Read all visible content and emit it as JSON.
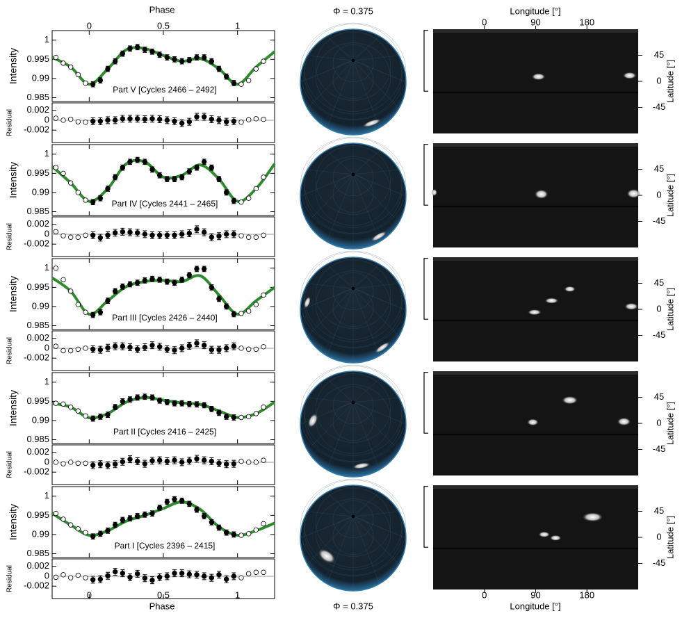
{
  "chart_data": {
    "type": "spot-model",
    "phase_label_top": "Phase",
    "phase_label_bottom": "Phase",
    "globe_title_top": "Φ = 0.375",
    "globe_title_bottom": "Φ = 0.375",
    "lon_label_top": "Longitude [°]",
    "lon_label_bottom": "Longitude [°]",
    "lat_label": "Latitude [°]",
    "intensity_label": "Intensity",
    "residual_label": "Residual",
    "xlim": [
      -0.25,
      1.25
    ],
    "xticks": [
      0,
      0.5,
      1
    ],
    "ylim": [
      0.984,
      1.0025
    ],
    "yticks": [
      0.985,
      0.99,
      0.995,
      1
    ],
    "resid_ylim": [
      -0.0045,
      0.0035
    ],
    "resid_yticks": [
      -0.002,
      0,
      0.002
    ],
    "lonlim": [
      -90,
      270
    ],
    "lonticks": [
      0,
      90,
      180
    ],
    "latlim": [
      -90,
      90
    ],
    "latticks": [
      -45,
      0,
      45
    ],
    "model_color": "#2e8b2e",
    "point_color": "#000000",
    "x": [
      -0.225,
      -0.175,
      -0.125,
      -0.075,
      -0.025,
      0.025,
      0.075,
      0.125,
      0.175,
      0.225,
      0.275,
      0.325,
      0.375,
      0.425,
      0.475,
      0.525,
      0.575,
      0.625,
      0.675,
      0.725,
      0.775,
      0.825,
      0.875,
      0.925,
      0.975,
      1.025,
      1.075,
      1.125,
      1.175
    ],
    "model_x": [
      -0.25,
      -0.125,
      0,
      0.125,
      0.25,
      0.375,
      0.5,
      0.625,
      0.75,
      0.875,
      1,
      1.125,
      1.25
    ],
    "panels": [
      {
        "label": "Part V [Cycles 2466 – 2492]",
        "error": 0.0007,
        "values": [
          0.9955,
          0.994,
          0.993,
          0.991,
          0.9888,
          0.9885,
          0.9895,
          0.9925,
          0.9945,
          0.9965,
          0.9978,
          0.9982,
          0.9975,
          0.997,
          0.9962,
          0.9955,
          0.995,
          0.9945,
          0.9948,
          0.9955,
          0.9955,
          0.9945,
          0.9925,
          0.9905,
          0.9888,
          0.9885,
          0.9895,
          0.9925,
          0.9945
        ],
        "model": [
          0.9955,
          0.993,
          0.9885,
          0.9925,
          0.9975,
          0.9978,
          0.996,
          0.9945,
          0.9952,
          0.9925,
          0.9885,
          0.993,
          0.997
        ],
        "residuals": [
          0.0004,
          0,
          0.0002,
          -0.0003,
          -0.0004,
          -0.0002,
          -0.0002,
          0,
          0,
          0.0003,
          0.0003,
          0.0003,
          0.0002,
          0.0003,
          0.0002,
          0,
          -0.0002,
          -0.0006,
          -0.0003,
          0.0007,
          0.0007,
          0.0002,
          0,
          -0.0003,
          -0.0002,
          -0.0004,
          0.0001,
          0.0003,
          0.0002
        ],
        "spots": [
          {
            "lon": 95,
            "lat": 8,
            "w": 12,
            "h": 6
          },
          {
            "lon": 255,
            "lat": 10,
            "w": 12,
            "h": 6
          }
        ]
      },
      {
        "label": "Part IV [Cycles 2441 – 2465]",
        "error": 0.0007,
        "values": [
          0.9965,
          0.995,
          0.9925,
          0.99,
          0.988,
          0.9875,
          0.9885,
          0.991,
          0.994,
          0.9965,
          0.998,
          0.9985,
          0.998,
          0.996,
          0.9945,
          0.9935,
          0.9935,
          0.994,
          0.9955,
          0.9965,
          0.998,
          0.9965,
          0.9935,
          0.99,
          0.9878,
          0.9875,
          0.9885,
          0.991,
          0.994
        ],
        "model": [
          0.9968,
          0.9925,
          0.9877,
          0.991,
          0.9975,
          0.998,
          0.994,
          0.9945,
          0.9972,
          0.9935,
          0.9877,
          0.991,
          0.9975
        ],
        "residuals": [
          0.0005,
          -0.0003,
          -0.0006,
          -0.0006,
          -0.0002,
          -0.0002,
          -0.0007,
          -0.0002,
          0.0003,
          0.0005,
          0.0004,
          0.0003,
          0,
          -0.0002,
          -0.0002,
          -0.0002,
          -0.0002,
          0,
          0.0002,
          0.001,
          0.0004,
          -0.0006,
          -0.0004,
          0,
          0,
          -0.0003,
          -0.0006,
          -0.0006,
          -0.0002
        ],
        "spots": [
          {
            "lon": 100,
            "lat": 2,
            "w": 12,
            "h": 8
          },
          {
            "lon": 262,
            "lat": 3,
            "w": 12,
            "h": 8
          },
          {
            "lon": -88,
            "lat": 5,
            "w": 5,
            "h": 6
          }
        ]
      },
      {
        "label": "Part III [Cycles 2426 – 2440]",
        "error": 0.0007,
        "values": [
          1.0,
          0.997,
          0.994,
          0.9905,
          0.9885,
          0.9878,
          0.9885,
          0.9915,
          0.994,
          0.9952,
          0.9958,
          0.9962,
          0.9968,
          0.9972,
          0.997,
          0.9965,
          0.9962,
          0.997,
          0.9982,
          0.9998,
          0.9998,
          0.995,
          0.992,
          0.99,
          0.988,
          0.9882,
          0.9888,
          0.9905,
          0.993
        ],
        "model": [
          0.9975,
          0.994,
          0.988,
          0.9915,
          0.9952,
          0.9965,
          0.9968,
          0.9965,
          0.998,
          0.993,
          0.988,
          0.9915,
          0.995
        ],
        "residuals": [
          0.0004,
          -0.0005,
          -0.0005,
          -0.0002,
          0,
          -0.0002,
          -0.0003,
          0.0001,
          0.0004,
          0.0004,
          0.0002,
          -0.0002,
          0.0002,
          0.0006,
          0.0003,
          -0.0002,
          -0.0004,
          0,
          0.0005,
          0.001,
          0.0006,
          -0.0003,
          -0.0003,
          0,
          0.0004,
          0,
          -0.0002,
          -0.0002,
          0.0003
        ],
        "spots": [
          {
            "lon": 88,
            "lat": -5,
            "w": 12,
            "h": 5
          },
          {
            "lon": 118,
            "lat": 15,
            "w": 12,
            "h": 5
          },
          {
            "lon": 150,
            "lat": 35,
            "w": 10,
            "h": 5
          },
          {
            "lon": 258,
            "lat": 5,
            "w": 12,
            "h": 6
          }
        ]
      },
      {
        "label": "Part II [Cycles 2416 – 2425]",
        "error": 0.0007,
        "values": [
          0.9945,
          0.9943,
          0.9935,
          0.9925,
          0.9912,
          0.9905,
          0.991,
          0.9915,
          0.9935,
          0.995,
          0.9955,
          0.996,
          0.9962,
          0.996,
          0.9952,
          0.9948,
          0.9945,
          0.9945,
          0.9943,
          0.9942,
          0.994,
          0.993,
          0.992,
          0.991,
          0.9908,
          0.9908,
          0.991,
          0.9918,
          0.9935
        ],
        "model": [
          0.9945,
          0.9935,
          0.9907,
          0.9918,
          0.9948,
          0.996,
          0.9953,
          0.9946,
          0.9942,
          0.9925,
          0.9908,
          0.9918,
          0.9948
        ],
        "residuals": [
          0,
          -0.0003,
          0,
          -0.0002,
          -0.0002,
          -0.0006,
          -0.0004,
          -0.0006,
          -0.0004,
          0.0001,
          0.0006,
          0.0002,
          -0.0003,
          0.0003,
          0.0004,
          0.0002,
          0.0004,
          0,
          0.0003,
          0.0007,
          0.0004,
          0.0002,
          -0.0002,
          -0.0004,
          -0.0003,
          0.0002,
          0,
          0,
          0.0004
        ],
        "spots": [
          {
            "lon": 85,
            "lat": 2,
            "w": 10,
            "h": 6
          },
          {
            "lon": 150,
            "lat": 40,
            "w": 14,
            "h": 7
          },
          {
            "lon": 245,
            "lat": 3,
            "w": 12,
            "h": 7
          }
        ]
      },
      {
        "label": "Part I [Cycles 2396 – 2415]",
        "error": 0.0007,
        "values": [
          0.9955,
          0.994,
          0.9925,
          0.9915,
          0.9905,
          0.9895,
          0.9902,
          0.991,
          0.9925,
          0.9938,
          0.9942,
          0.9948,
          0.9952,
          0.9955,
          0.997,
          0.9985,
          0.9992,
          0.9988,
          0.998,
          0.9965,
          0.9948,
          0.9932,
          0.9918,
          0.9905,
          0.99,
          0.9898,
          0.9902,
          0.9912,
          0.9928
        ],
        "model": [
          0.9955,
          0.9925,
          0.9898,
          0.991,
          0.9935,
          0.995,
          0.9968,
          0.9985,
          0.9965,
          0.992,
          0.9898,
          0.991,
          0.993
        ],
        "residuals": [
          -0.0002,
          0.0003,
          -0.0003,
          0.0002,
          -0.0003,
          -0.0007,
          -0.0006,
          0.0001,
          0.0009,
          0.0006,
          -0.0002,
          0.0005,
          -0.0004,
          -0.0008,
          -0.0002,
          0,
          0.0006,
          0.0006,
          0.0004,
          0.0003,
          0,
          -0.0003,
          0.0003,
          -0.0006,
          0,
          -0.0003,
          0.0005,
          0.0008,
          0.0008
        ],
        "spots": [
          {
            "lon": 105,
            "lat": 5,
            "w": 10,
            "h": 5
          },
          {
            "lon": 125,
            "lat": -1,
            "w": 10,
            "h": 5
          },
          {
            "lon": 190,
            "lat": 35,
            "w": 18,
            "h": 8
          }
        ]
      }
    ]
  }
}
